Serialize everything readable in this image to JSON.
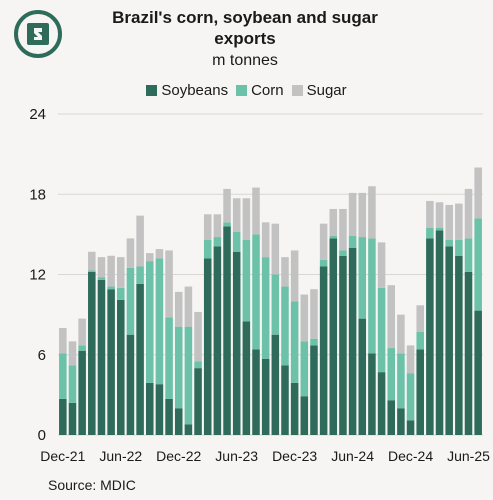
{
  "header": {
    "title": "Brazil's corn, soybean and sugar exports",
    "subtitle": "m tonnes",
    "source": "Source: MDIC"
  },
  "colors": {
    "soybeans": "#2f6b5a",
    "corn": "#6cc1a9",
    "sugar": "#c2c2c2",
    "logo": "#2f6b5a"
  },
  "chart_data": {
    "type": "bar",
    "stacked": true,
    "title": "Brazil's corn, soybean and sugar exports",
    "subtitle": "m tonnes",
    "xlabel": "",
    "ylabel": "",
    "ylim": [
      0,
      24
    ],
    "yticks": [
      "0",
      "6",
      "12",
      "18",
      "24"
    ],
    "xticks": [
      "Dec-21",
      "Jun-22",
      "Dec-22",
      "Jun-23",
      "Dec-23",
      "Jun-24",
      "Dec-24",
      "Jun-25"
    ],
    "grid": true,
    "legend": "top",
    "categories": [
      "Dec-21",
      "Jan-22",
      "Feb-22",
      "Mar-22",
      "Apr-22",
      "May-22",
      "Jun-22",
      "Jul-22",
      "Aug-22",
      "Sep-22",
      "Oct-22",
      "Nov-22",
      "Dec-22",
      "Jan-23",
      "Feb-23",
      "Mar-23",
      "Apr-23",
      "May-23",
      "Jun-23",
      "Jul-23",
      "Aug-23",
      "Sep-23",
      "Oct-23",
      "Nov-23",
      "Dec-23",
      "Jan-24",
      "Feb-24",
      "Mar-24",
      "Apr-24",
      "May-24",
      "Jun-24",
      "Jul-24",
      "Aug-24",
      "Sep-24",
      "Oct-24",
      "Nov-24",
      "Dec-24",
      "Jan-25",
      "Feb-25",
      "Mar-25",
      "Apr-25",
      "May-25",
      "Jun-25",
      "Jul-25"
    ],
    "series": [
      {
        "name": "Soybeans",
        "values": [
          2.7,
          2.4,
          6.3,
          12.2,
          11.6,
          10.9,
          10.1,
          7.5,
          11.3,
          3.9,
          3.8,
          2.7,
          2.0,
          0.8,
          5.0,
          13.2,
          14.1,
          15.6,
          13.7,
          8.5,
          6.4,
          5.7,
          7.5,
          5.2,
          3.9,
          2.9,
          6.7,
          12.6,
          14.7,
          13.4,
          14.0,
          8.7,
          6.1,
          4.7,
          2.6,
          2.0,
          1.1,
          6.4,
          14.7,
          15.3,
          14.1,
          13.4,
          12.2,
          9.3
        ]
      },
      {
        "name": "Corn",
        "values": [
          3.4,
          2.8,
          0.4,
          0.1,
          0.2,
          0.2,
          0.9,
          5.0,
          1.3,
          9.1,
          9.4,
          6.1,
          6.1,
          7.3,
          0.5,
          1.4,
          0.7,
          0.3,
          1.5,
          6.1,
          8.6,
          7.6,
          4.5,
          5.9,
          6.1,
          4.1,
          0.5,
          0.5,
          0.2,
          0.4,
          0.9,
          6.1,
          8.6,
          6.3,
          3.9,
          4.1,
          3.5,
          1.3,
          0.8,
          0.2,
          0.5,
          1.2,
          2.5,
          6.9
        ]
      },
      {
        "name": "Sugar",
        "values": [
          1.9,
          1.8,
          2.0,
          1.4,
          1.5,
          2.3,
          2.3,
          2.2,
          3.8,
          0.6,
          0.7,
          5.0,
          2.6,
          3.0,
          3.7,
          1.9,
          1.7,
          2.5,
          2.5,
          3.1,
          3.5,
          2.6,
          3.8,
          2.2,
          3.8,
          3.5,
          3.7,
          2.7,
          2.0,
          3.1,
          3.2,
          3.3,
          3.9,
          3.4,
          4.7,
          2.9,
          2.1,
          2.0,
          2.0,
          1.9,
          2.6,
          2.7,
          3.7,
          3.8
        ]
      }
    ]
  }
}
